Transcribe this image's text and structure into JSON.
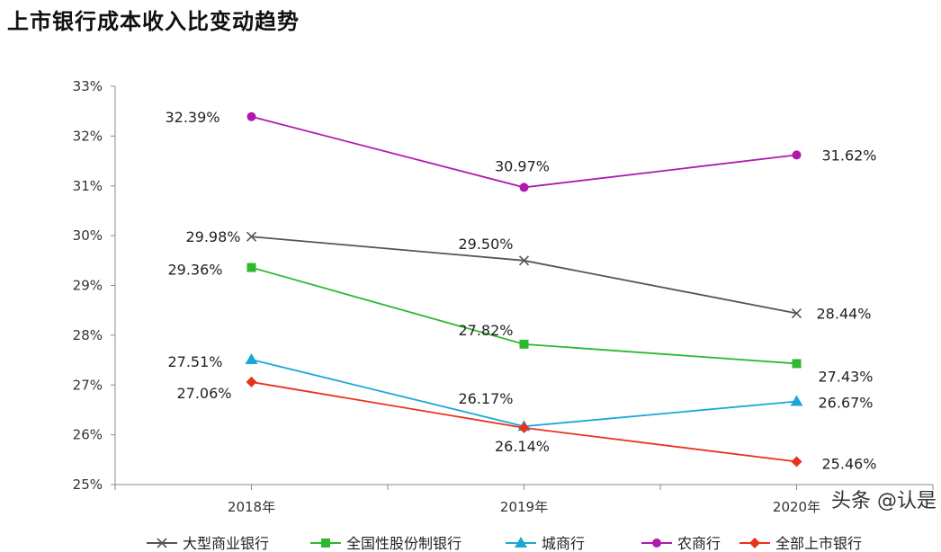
{
  "chart_data": {
    "type": "line",
    "title": "上市银行成本收入比变动趋势",
    "xlabel": "",
    "ylabel": "",
    "categories": [
      "2018年",
      "2019年",
      "2020年"
    ],
    "ylim": [
      25,
      33
    ],
    "yticks": [
      "25%",
      "26%",
      "27%",
      "28%",
      "29%",
      "30%",
      "31%",
      "32%",
      "33%"
    ],
    "grid": false,
    "legend_position": "bottom",
    "series": [
      {
        "name": "大型商业银行",
        "color": "#555555",
        "marker": "x",
        "values": [
          29.98,
          29.5,
          28.44
        ],
        "labels": [
          "29.98%",
          "29.50%",
          "28.44%"
        ]
      },
      {
        "name": "全国性股份制银行",
        "color": "#2db82d",
        "marker": "square",
        "values": [
          29.36,
          27.82,
          27.43
        ],
        "labels": [
          "29.36%",
          "27.82%",
          "27.43%"
        ]
      },
      {
        "name": "城商行",
        "color": "#1aa7d8",
        "marker": "triangle",
        "values": [
          27.51,
          26.17,
          26.67
        ],
        "labels": [
          "27.51%",
          "26.17%",
          "26.67%"
        ]
      },
      {
        "name": "农商行",
        "color": "#b019b0",
        "marker": "circle",
        "values": [
          32.39,
          30.97,
          31.62
        ],
        "labels": [
          "32.39%",
          "30.97%",
          "31.62%"
        ]
      },
      {
        "name": "全部上市银行",
        "color": "#e8321e",
        "marker": "diamond",
        "values": [
          27.06,
          26.14,
          25.46
        ],
        "labels": [
          "27.06%",
          "26.14%",
          "25.46%"
        ]
      }
    ]
  },
  "watermark": "头条 @认是"
}
